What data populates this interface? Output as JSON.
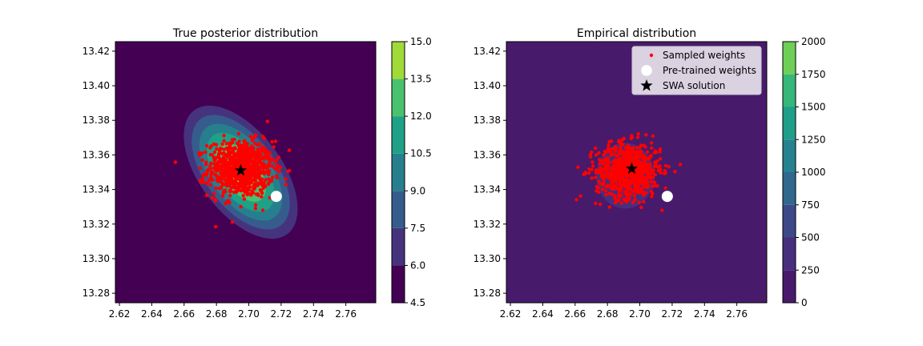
{
  "chart_data": [
    {
      "type": "contourf",
      "title": "True posterior distribution",
      "xlim": [
        2.6175,
        2.7785
      ],
      "ylim": [
        13.2745,
        13.4255
      ],
      "xticks": [
        "2.62",
        "2.64",
        "2.66",
        "2.68",
        "2.70",
        "2.72",
        "2.74",
        "2.76"
      ],
      "yticks": [
        "13.28",
        "13.30",
        "13.32",
        "13.34",
        "13.36",
        "13.38",
        "13.40",
        "13.42"
      ],
      "colorbar": {
        "levels": [
          4.5,
          6.0,
          7.5,
          9.0,
          10.5,
          12.0,
          13.5,
          15.0
        ],
        "tick_labels": [
          "4.5",
          "6.0",
          "7.5",
          "9.0",
          "10.5",
          "12.0",
          "13.5",
          "15.0"
        ],
        "colors": [
          "#440154",
          "#46337e",
          "#365c8d",
          "#277f8e",
          "#1fa187",
          "#4ac16d",
          "#a0da39",
          "#d2e21b"
        ]
      },
      "center": [
        2.695,
        13.35
      ],
      "posterior_model": {
        "peak": 14.2,
        "sx": 0.0268,
        "sy": 0.0293,
        "rho": -0.55
      },
      "sampled_weights": {
        "mean": [
          2.695,
          13.352
        ],
        "sd": [
          0.01,
          0.008
        ],
        "count": 900
      },
      "pretrained_weights": [
        2.717,
        13.336
      ],
      "swa_solution": [
        2.695,
        13.351
      ]
    },
    {
      "type": "contourf",
      "title": "Empirical distribution",
      "xlim": [
        2.6175,
        2.7785
      ],
      "ylim": [
        13.2745,
        13.4255
      ],
      "xticks": [
        "2.62",
        "2.64",
        "2.66",
        "2.68",
        "2.70",
        "2.72",
        "2.74",
        "2.76"
      ],
      "yticks": [
        "13.28",
        "13.30",
        "13.32",
        "13.34",
        "13.36",
        "13.38",
        "13.40",
        "13.42"
      ],
      "colorbar": {
        "levels": [
          0,
          250,
          500,
          750,
          1000,
          1250,
          1500,
          1750,
          2000
        ],
        "tick_labels": [
          "0",
          "250",
          "500",
          "750",
          "1000",
          "1250",
          "1500",
          "1750",
          "2000"
        ],
        "colors": [
          "#481a6c",
          "#472f7d",
          "#3e4989",
          "#31688e",
          "#26828e",
          "#1f9e89",
          "#35b779",
          "#6ece58",
          "#b5de2b"
        ]
      },
      "background_level": 0,
      "blob": {
        "center": [
          2.691,
          13.348
        ],
        "radius": [
          0.018,
          0.019
        ],
        "level": 1
      },
      "sampled_weights": {
        "mean": [
          2.693,
          13.351
        ],
        "sd": [
          0.01,
          0.008
        ],
        "count": 700
      },
      "pretrained_weights": [
        2.717,
        13.336
      ],
      "swa_solution": [
        2.695,
        13.352
      ],
      "legend": {
        "placement": "top-right",
        "entries": [
          "Sampled weights",
          "Pre-trained weights",
          "SWA solution"
        ]
      }
    }
  ]
}
